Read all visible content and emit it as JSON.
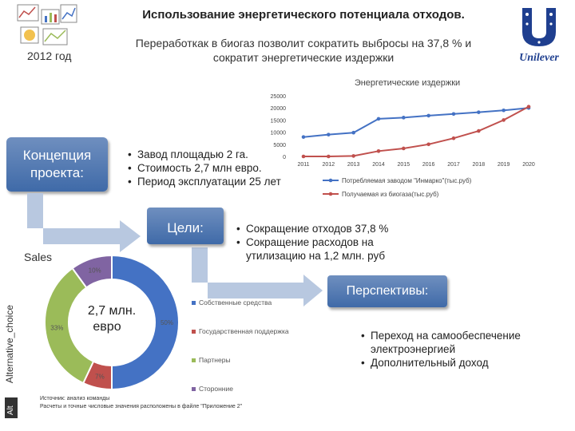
{
  "header": {
    "title": "Использование энергетического потенциала отходов.",
    "subtitle_line1": "Переработкак в биогаз позволит сократить выбросы на 37,8 % и",
    "subtitle_line2": "сократит энергетические издержки",
    "year": "2012 год",
    "logo_text": "Unilever"
  },
  "concept": {
    "label_line1": "Концепция",
    "label_line2": "проекта:"
  },
  "concept_points": [
    "Завод площадью 2 га.",
    "Стоимость 2,7 млн евро.",
    "Период эксплуатации 25 лет"
  ],
  "goals": {
    "label": "Цели:",
    "points": [
      "Сокращение отходов 37,8 %",
      "Сокращение расходов на утилизацию на 1,2 млн. руб"
    ]
  },
  "perspectives": {
    "label": "Перспективы:",
    "points": [
      "Переход на самообеспечение электроэнергией",
      "Дополнительный доход"
    ]
  },
  "side_tab": {
    "text": "Alternative_choice",
    "alt": "Alt"
  },
  "source": {
    "line1": "Источник: анализ команды",
    "line2": "Расчеты и точные числовые значения расположены в файле \"Приложение 2\""
  },
  "chart_data": [
    {
      "type": "line",
      "title": "Энергетические издержки",
      "x": [
        "2011",
        "2012",
        "2013",
        "2014",
        "2015",
        "2016",
        "2017",
        "2018",
        "2019",
        "2020"
      ],
      "ylim": [
        0,
        25000
      ],
      "yticks": [
        "0",
        "5000",
        "10000",
        "15000",
        "20000",
        "25000"
      ],
      "grid": false,
      "legend": "bottom",
      "series": [
        {
          "name": "Потребляемая заводом \"Инмарко\"(тыс.руб)",
          "color": "#4472c4",
          "values": [
            8000,
            9000,
            9800,
            15500,
            16000,
            16800,
            17500,
            18200,
            19000,
            20000
          ]
        },
        {
          "name": "Получаемая из биогаза(тыс.руб)",
          "color": "#c0504d",
          "values": [
            0,
            0,
            200,
            2200,
            3300,
            5000,
            7500,
            10500,
            15000,
            20500
          ]
        }
      ]
    },
    {
      "type": "pie",
      "title": "Sales",
      "center_label": "2,7 млн. евро",
      "legend": "right",
      "slices": [
        {
          "name": "Собственные средства",
          "value": 50,
          "label": "50%",
          "color": "#4472c4"
        },
        {
          "name": "Государственная поддержка",
          "value": 7,
          "label": "7%",
          "color": "#c0504d"
        },
        {
          "name": "Партнеры",
          "value": 33,
          "label": "33%",
          "color": "#9bbb59"
        },
        {
          "name": "Сторонние",
          "value": 10,
          "label": "10%",
          "color": "#8064a2"
        }
      ]
    }
  ]
}
